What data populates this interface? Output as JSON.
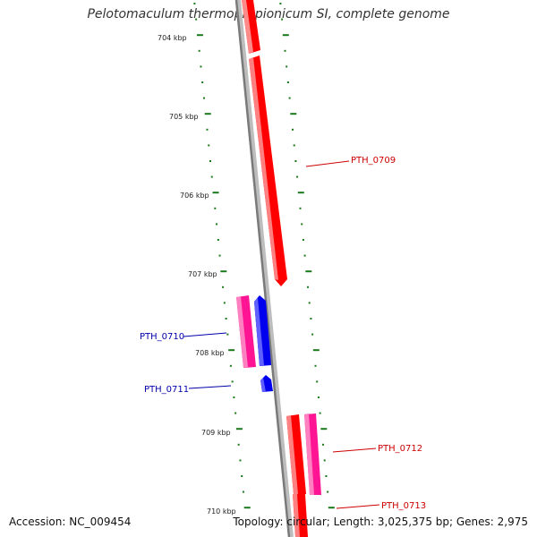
{
  "title": "Pelotomaculum thermopropionicum SI, complete genome",
  "accession": "Accession: NC_009454",
  "topology": "Topology: circular; Length: 3,025,375 bp; Genes: 2,975",
  "colors": {
    "backbone": "#8a8a8a",
    "tick": "#1a7a1a",
    "forward_cds": "#ff0000",
    "forward_cds_pink": "#ff1493",
    "reverse_cds": "#0000ee",
    "forward_label": "#cc0000",
    "reverse_label": "#0000aa"
  },
  "scale_labels": [
    "704 kbp",
    "705 kbp",
    "706 kbp",
    "707 kbp",
    "708 kbp",
    "709 kbp",
    "710 kbp"
  ],
  "genes": [
    {
      "id": "PTH_0709",
      "strand": "forward",
      "color": "red"
    },
    {
      "id": "PTH_0710",
      "strand": "reverse",
      "color": "blue"
    },
    {
      "id": "PTH_0711",
      "strand": "reverse",
      "color": "blue"
    },
    {
      "id": "PTH_0712",
      "strand": "forward",
      "color": "pink"
    },
    {
      "id": "PTH_0713",
      "strand": "forward",
      "color": "red"
    }
  ]
}
